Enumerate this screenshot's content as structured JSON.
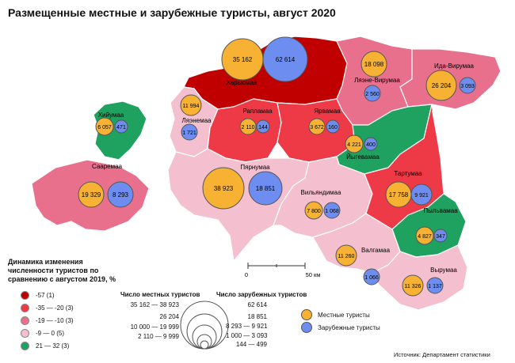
{
  "title": "Размещенные местные и зарубежные туристы, август 2020",
  "colors": {
    "cat_very_low": "#c00000",
    "cat_low": "#ee3a47",
    "cat_mid_low": "#e8708c",
    "cat_slight": "#f4c0cf",
    "cat_positive": "#1fa15f",
    "local": "#f8b233",
    "foreign": "#6d8ef0"
  },
  "counties": [
    {
      "name": "Харьюмаа",
      "local": "35 162",
      "foreign": "62 614"
    },
    {
      "name": "Ляэне-Вирумаа",
      "local": "18 098",
      "foreign": "2 560"
    },
    {
      "name": "Ида-Вирумаа",
      "local": "26 204",
      "foreign": "3 093"
    },
    {
      "name": "Хийумаа",
      "local": "6 057",
      "foreign": "471"
    },
    {
      "name": "Ляэнемаа",
      "local": "11 994",
      "foreign": "1 721"
    },
    {
      "name": "Рапламаа",
      "local": "2 110",
      "foreign": "144"
    },
    {
      "name": "Ярвамаа",
      "local": "3 672",
      "foreign": "160"
    },
    {
      "name": "Йыгевамаа",
      "local": "4 221",
      "foreign": "400"
    },
    {
      "name": "Сааремаа",
      "local": "19 329",
      "foreign": "8 293"
    },
    {
      "name": "Пярнумаа",
      "local": "38 923",
      "foreign": "18 851"
    },
    {
      "name": "Вильяндимаа",
      "local": "7 800",
      "foreign": "1 068"
    },
    {
      "name": "Тартумаа",
      "local": "17 758",
      "foreign": "9 921"
    },
    {
      "name": "Пыльвамаа",
      "local": "4 827",
      "foreign": "347"
    },
    {
      "name": "Валгамаа",
      "local": "11 260",
      "foreign": "1 066"
    },
    {
      "name": "Вырумаа",
      "local": "11 326",
      "foreign": "1 137"
    }
  ],
  "scale": {
    "zero": "0",
    "fifty": "50 км"
  },
  "legend": {
    "title": "Динамика изменения численности туристов по сравнению с августом 2019, %",
    "items": [
      {
        "label": "-57 (1)",
        "color": "#c00000"
      },
      {
        "label": "-35 — -20 (3)",
        "color": "#ee3a47"
      },
      {
        "label": "-19 — -10 (3)",
        "color": "#e8708c"
      },
      {
        "label": "-9 — 0 (5)",
        "color": "#f4c0cf"
      },
      {
        "label": "21 — 32 (3)",
        "color": "#1fa15f"
      }
    ]
  },
  "size_legend": {
    "local_title": "Число местных туристов",
    "foreign_title": "Число зарубежных туристов",
    "local_rows": [
      "35 162 — 38 923",
      "26 204",
      "10 000 — 19 999",
      "2 110 — 9 999"
    ],
    "foreign_rows": [
      "62 614",
      "18 851",
      "8 293 — 9 921",
      "1 000 — 3 093",
      "144 — 499"
    ]
  },
  "symbols": {
    "local": "Местные туристы",
    "foreign": "Зарубежные туристы"
  },
  "source": "Источник: Департамент статистики"
}
